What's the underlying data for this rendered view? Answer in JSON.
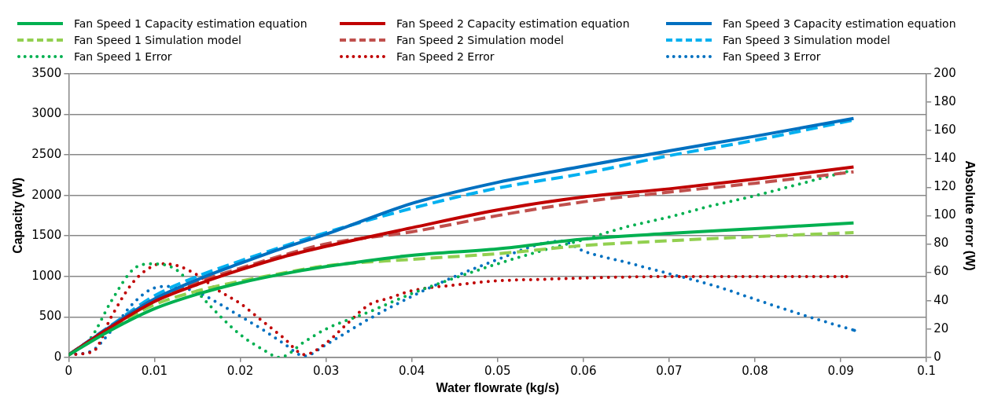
{
  "chart_data": {
    "type": "line",
    "xlabel": "Water flowrate (kg/s)",
    "ylabel": "Capacity (W)",
    "y2label": "Absolute error (W)",
    "xlim": [
      0,
      0.1
    ],
    "xticks": [
      0,
      0.01,
      0.02,
      0.03,
      0.04,
      0.05,
      0.06,
      0.07,
      0.08,
      0.09,
      0.1
    ],
    "ylim": [
      0,
      3500
    ],
    "yticks": [
      0,
      500,
      1000,
      1500,
      2000,
      2500,
      3000,
      3500
    ],
    "y2lim": [
      0,
      200
    ],
    "y2ticks": [
      0,
      20,
      40,
      60,
      80,
      100,
      120,
      140,
      160,
      180,
      200
    ],
    "grid": "y",
    "legend": "top",
    "marker": "none",
    "series": [
      {
        "name": "Fan Speed 1 Capacity estimation equation",
        "type": "line",
        "line_style": "solid",
        "color": "#00b050",
        "x": [
          0,
          0.005,
          0.01,
          0.015,
          0.02,
          0.025,
          0.03,
          0.04,
          0.05,
          0.06,
          0.07,
          0.08,
          0.0915
        ],
        "values": [
          30,
          340,
          600,
          780,
          920,
          1030,
          1120,
          1260,
          1340,
          1460,
          1530,
          1590,
          1660
        ]
      },
      {
        "name": "Fan Speed 2 Capacity estimation equation",
        "type": "line",
        "line_style": "solid",
        "color": "#c00000",
        "x": [
          0,
          0.005,
          0.01,
          0.015,
          0.02,
          0.025,
          0.03,
          0.04,
          0.05,
          0.06,
          0.07,
          0.08,
          0.0915
        ],
        "values": [
          30,
          380,
          690,
          900,
          1080,
          1240,
          1370,
          1600,
          1820,
          1980,
          2080,
          2200,
          2350
        ]
      },
      {
        "name": "Fan Speed 3 Capacity estimation equation",
        "type": "line",
        "line_style": "solid",
        "color": "#0070c0",
        "x": [
          0,
          0.005,
          0.01,
          0.015,
          0.02,
          0.025,
          0.03,
          0.04,
          0.05,
          0.06,
          0.07,
          0.08,
          0.0915
        ],
        "values": [
          30,
          390,
          720,
          960,
          1160,
          1350,
          1520,
          1900,
          2160,
          2360,
          2550,
          2730,
          2950
        ]
      },
      {
        "name": "Fan Speed 1 Simulation model",
        "type": "line",
        "line_style": "dashed",
        "color": "#92d050",
        "x": [
          0,
          0.005,
          0.01,
          0.015,
          0.02,
          0.025,
          0.03,
          0.04,
          0.05,
          0.06,
          0.07,
          0.08,
          0.0915
        ],
        "values": [
          30,
          370,
          650,
          820,
          940,
          1040,
          1130,
          1210,
          1280,
          1380,
          1440,
          1490,
          1540
        ]
      },
      {
        "name": "Fan Speed 2 Simulation model",
        "type": "line",
        "line_style": "dashed",
        "color": "#c0504d",
        "x": [
          0,
          0.005,
          0.01,
          0.015,
          0.02,
          0.025,
          0.03,
          0.04,
          0.05,
          0.06,
          0.07,
          0.08,
          0.0915
        ],
        "values": [
          30,
          390,
          720,
          930,
          1100,
          1260,
          1400,
          1550,
          1750,
          1920,
          2040,
          2150,
          2290
        ]
      },
      {
        "name": "Fan Speed 3 Simulation model",
        "type": "line",
        "line_style": "dashed",
        "color": "#00b0f0",
        "x": [
          0,
          0.005,
          0.01,
          0.015,
          0.02,
          0.025,
          0.03,
          0.04,
          0.05,
          0.06,
          0.07,
          0.08,
          0.0915
        ],
        "values": [
          30,
          400,
          760,
          1000,
          1190,
          1370,
          1540,
          1840,
          2090,
          2270,
          2490,
          2680,
          2930
        ]
      },
      {
        "name": "Fan Speed 1 Error",
        "type": "line",
        "line_style": "dotted",
        "axis": "y2",
        "color": "#00b050",
        "x": [
          0,
          0.0025,
          0.005,
          0.0075,
          0.0095,
          0.0125,
          0.015,
          0.0175,
          0.02,
          0.0225,
          0.0246,
          0.0275,
          0.03,
          0.035,
          0.04,
          0.045,
          0.05,
          0.055,
          0.06,
          0.065,
          0.07,
          0.075,
          0.08,
          0.085,
          0.0907
        ],
        "values": [
          2,
          13,
          40,
          62,
          66,
          62,
          46,
          30,
          16,
          6,
          0,
          11,
          20,
          32,
          45,
          56,
          66,
          75,
          83,
          92,
          99,
          107,
          114,
          122,
          131
        ]
      },
      {
        "name": "Fan Speed 2 Error",
        "type": "line",
        "line_style": "dotted",
        "axis": "y2",
        "color": "#c00000",
        "x": [
          0,
          0.0028,
          0.005,
          0.0075,
          0.01,
          0.011,
          0.0125,
          0.015,
          0.0175,
          0.02,
          0.0225,
          0.025,
          0.0275,
          0.03,
          0.0325,
          0.035,
          0.0375,
          0.04,
          0.045,
          0.05,
          0.055,
          0.06,
          0.07,
          0.08,
          0.0907
        ],
        "values": [
          2,
          4,
          29,
          53,
          65,
          66,
          65,
          58,
          47,
          38,
          26,
          14,
          2,
          10,
          24,
          37,
          42,
          47,
          51,
          54,
          55,
          56,
          57,
          57,
          57
        ]
      },
      {
        "name": "Fan Speed 3 Error",
        "type": "line",
        "line_style": "dotted",
        "axis": "y2",
        "color": "#0070c0",
        "x": [
          0,
          0.0025,
          0.005,
          0.0075,
          0.01,
          0.0115,
          0.015,
          0.0175,
          0.02,
          0.0225,
          0.025,
          0.0275,
          0.03,
          0.0325,
          0.035,
          0.04,
          0.045,
          0.05,
          0.055,
          0.0575,
          0.06,
          0.065,
          0.07,
          0.075,
          0.08,
          0.085,
          0.0916
        ],
        "values": [
          2,
          4,
          19,
          38,
          49,
          50,
          46,
          38,
          29,
          20,
          10,
          1,
          9,
          18,
          27,
          43,
          57,
          69,
          80,
          82,
          75,
          67,
          59,
          51,
          41,
          31,
          19
        ]
      }
    ]
  }
}
